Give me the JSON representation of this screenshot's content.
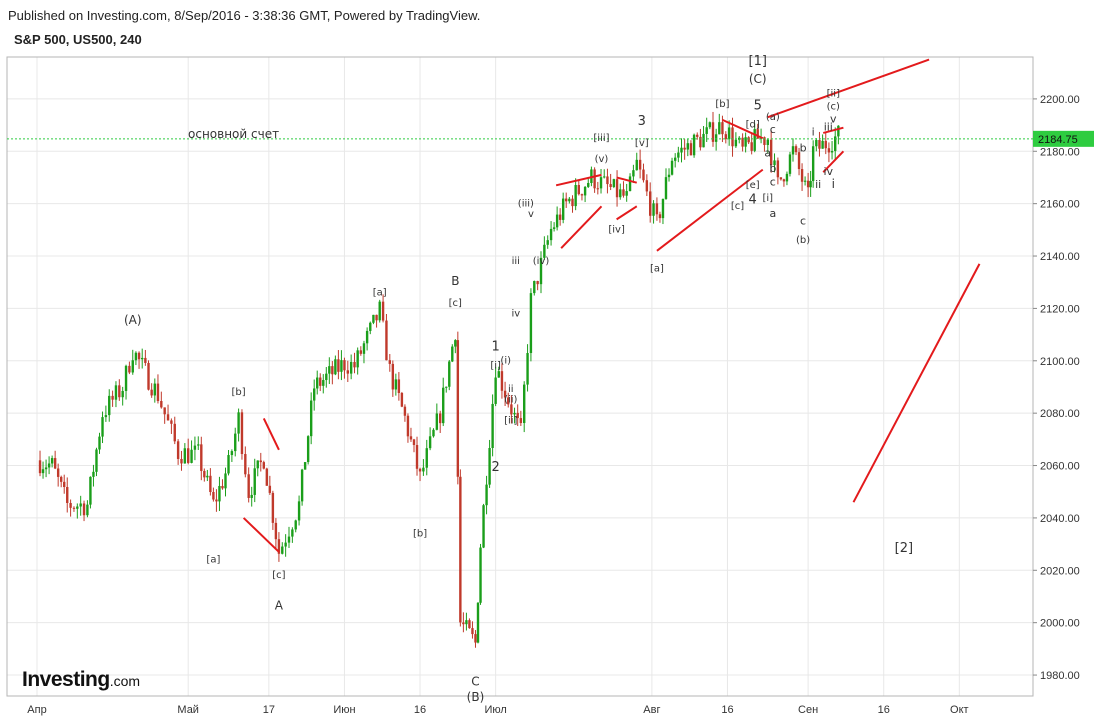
{
  "header": {
    "published": "Published on Investing.com, 8/Sep/2016 - 3:38:36 GMT, Powered by TradingView.",
    "symbol": "S&P 500, US500, 240"
  },
  "brand": {
    "name": "Investing",
    "suffix": ".com"
  },
  "colors": {
    "up": "#1a9e1a",
    "down": "#c0392b",
    "grid": "#e8e8e8",
    "annotation": "#e31a1c",
    "current": "#2ecc40",
    "wave_highlight": "#9b30d9"
  },
  "chart_data": {
    "type": "candlestick",
    "title": "S&P 500, US500, 240",
    "timeframe": "240",
    "x_labels": [
      "Апр",
      "Май",
      "17",
      "Июн",
      "16",
      "Июл",
      "Авг",
      "16",
      "Сен",
      "16",
      "Окт"
    ],
    "y_ticks": [
      1980,
      2000,
      2020,
      2040,
      2060,
      2080,
      2100,
      2120,
      2140,
      2160,
      2180,
      2200
    ],
    "ylim": [
      1972,
      2216
    ],
    "current_price": 2184.75,
    "current_price_label": "2184.75",
    "horizontal_line_label": "основной счет",
    "price_path": [
      {
        "d": "2016-04-01",
        "p": 2062
      },
      {
        "d": "2016-04-04",
        "p": 2060
      },
      {
        "d": "2016-04-07",
        "p": 2045
      },
      {
        "d": "2016-04-11",
        "p": 2045
      },
      {
        "d": "2016-04-14",
        "p": 2080
      },
      {
        "d": "2016-04-18",
        "p": 2090
      },
      {
        "d": "2016-04-20",
        "p": 2104
      },
      {
        "d": "2016-04-25",
        "p": 2087
      },
      {
        "d": "2016-04-29",
        "p": 2065
      },
      {
        "d": "2016-05-03",
        "p": 2064
      },
      {
        "d": "2016-05-06",
        "p": 2045
      },
      {
        "d": "2016-05-09",
        "p": 2060
      },
      {
        "d": "2016-05-11",
        "p": 2078
      },
      {
        "d": "2016-05-13",
        "p": 2050
      },
      {
        "d": "2016-05-16",
        "p": 2063
      },
      {
        "d": "2016-05-19",
        "p": 2027
      },
      {
        "d": "2016-05-23",
        "p": 2045
      },
      {
        "d": "2016-05-26",
        "p": 2090
      },
      {
        "d": "2016-06-01",
        "p": 2099
      },
      {
        "d": "2016-06-03",
        "p": 2098
      },
      {
        "d": "2016-06-08",
        "p": 2119
      },
      {
        "d": "2016-06-10",
        "p": 2096
      },
      {
        "d": "2016-06-13",
        "p": 2078
      },
      {
        "d": "2016-06-16",
        "p": 2055
      },
      {
        "d": "2016-06-20",
        "p": 2080
      },
      {
        "d": "2016-06-23",
        "p": 2112
      },
      {
        "d": "2016-06-24",
        "p": 2000
      },
      {
        "d": "2016-06-27",
        "p": 1992
      },
      {
        "d": "2016-06-28",
        "p": 2030
      },
      {
        "d": "2016-07-01",
        "p": 2098
      },
      {
        "d": "2016-07-06",
        "p": 2072
      },
      {
        "d": "2016-07-08",
        "p": 2123
      },
      {
        "d": "2016-07-12",
        "p": 2150
      },
      {
        "d": "2016-07-15",
        "p": 2160
      },
      {
        "d": "2016-07-20",
        "p": 2170
      },
      {
        "d": "2016-07-27",
        "p": 2162
      },
      {
        "d": "2016-07-29",
        "p": 2175
      },
      {
        "d": "2016-08-02",
        "p": 2152
      },
      {
        "d": "2016-08-05",
        "p": 2178
      },
      {
        "d": "2016-08-10",
        "p": 2184
      },
      {
        "d": "2016-08-15",
        "p": 2190
      },
      {
        "d": "2016-08-19",
        "p": 2180
      },
      {
        "d": "2016-08-22",
        "p": 2185
      },
      {
        "d": "2016-08-24",
        "p": 2185
      },
      {
        "d": "2016-08-26",
        "p": 2167
      },
      {
        "d": "2016-08-29",
        "p": 2180
      },
      {
        "d": "2016-09-01",
        "p": 2162
      },
      {
        "d": "2016-09-02",
        "p": 2180
      },
      {
        "d": "2016-09-07",
        "p": 2186
      }
    ],
    "trendlines": [
      {
        "from": [
          "2016-05-16",
          2078
        ],
        "to": [
          "2016-05-19",
          2066
        ]
      },
      {
        "from": [
          "2016-05-12",
          2040
        ],
        "to": [
          "2016-05-19",
          2027
        ]
      },
      {
        "from": [
          "2016-07-13",
          2167
        ],
        "to": [
          "2016-07-22",
          2171
        ]
      },
      {
        "from": [
          "2016-07-14",
          2143
        ],
        "to": [
          "2016-07-22",
          2159
        ]
      },
      {
        "from": [
          "2016-07-25",
          2170
        ],
        "to": [
          "2016-07-29",
          2168
        ]
      },
      {
        "from": [
          "2016-07-25",
          2154
        ],
        "to": [
          "2016-07-29",
          2159
        ]
      },
      {
        "from": [
          "2016-08-02",
          2142
        ],
        "to": [
          "2016-08-23",
          2173
        ]
      },
      {
        "from": [
          "2016-08-15",
          2192
        ],
        "to": [
          "2016-08-23",
          2185
        ]
      },
      {
        "from": [
          "2016-08-24",
          2193
        ],
        "to": [
          "2016-09-25",
          2215
        ]
      },
      {
        "from": [
          "2016-09-04",
          2187
        ],
        "to": [
          "2016-09-08",
          2189
        ]
      },
      {
        "from": [
          "2016-09-04",
          2172
        ],
        "to": [
          "2016-09-08",
          2180
        ]
      },
      {
        "from": [
          "2016-09-10",
          2046
        ],
        "to": [
          "2016-10-05",
          2137
        ]
      }
    ],
    "labels": [
      {
        "t": "(A)",
        "d": "2016-04-20",
        "p": 2114,
        "size": 12
      },
      {
        "t": "[b]",
        "d": "2016-05-11",
        "p": 2087,
        "size": 10
      },
      {
        "t": "[a]",
        "d": "2016-05-06",
        "p": 2023,
        "size": 10
      },
      {
        "t": "[c]",
        "d": "2016-05-19",
        "p": 2017,
        "size": 10
      },
      {
        "t": "A",
        "d": "2016-05-19",
        "p": 2005,
        "size": 12
      },
      {
        "t": "[a]",
        "d": "2016-06-08",
        "p": 2125,
        "size": 10
      },
      {
        "t": "[b]",
        "d": "2016-06-16",
        "p": 2033,
        "size": 10
      },
      {
        "t": "B",
        "d": "2016-06-23",
        "p": 2129,
        "size": 12
      },
      {
        "t": "[c]",
        "d": "2016-06-23",
        "p": 2121,
        "size": 10
      },
      {
        "t": "C",
        "d": "2016-06-27",
        "p": 1976,
        "size": 12
      },
      {
        "t": "(B)",
        "d": "2016-06-27",
        "p": 1970,
        "size": 12
      },
      {
        "t": "1",
        "d": "2016-07-01",
        "p": 2104,
        "size": 13
      },
      {
        "t": "[i]",
        "d": "2016-07-01",
        "p": 2097,
        "size": 10
      },
      {
        "t": "(i)",
        "d": "2016-07-03",
        "p": 2099,
        "size": 10
      },
      {
        "t": "ii",
        "d": "2016-07-04",
        "p": 2088,
        "size": 10
      },
      {
        "t": "(ii)",
        "d": "2016-07-04",
        "p": 2084,
        "size": 10
      },
      {
        "t": "[ii]",
        "d": "2016-07-04",
        "p": 2076,
        "size": 10
      },
      {
        "t": "2",
        "d": "2016-07-01",
        "p": 2058,
        "size": 13
      },
      {
        "t": "iii",
        "d": "2016-07-05",
        "p": 2137,
        "size": 10
      },
      {
        "t": "iv",
        "d": "2016-07-05",
        "p": 2117,
        "size": 10
      },
      {
        "t": "(iii)",
        "d": "2016-07-07",
        "p": 2159,
        "size": 10
      },
      {
        "t": "v",
        "d": "2016-07-08",
        "p": 2155,
        "size": 10
      },
      {
        "t": "(iv)",
        "d": "2016-07-10",
        "p": 2137,
        "size": 10
      },
      {
        "t": "[iii]",
        "d": "2016-07-22",
        "p": 2184,
        "size": 10
      },
      {
        "t": "(v)",
        "d": "2016-07-22",
        "p": 2176,
        "size": 10
      },
      {
        "t": "[iv]",
        "d": "2016-07-25",
        "p": 2149,
        "size": 10
      },
      {
        "t": "3",
        "d": "2016-07-30",
        "p": 2190,
        "size": 13
      },
      {
        "t": "[v]",
        "d": "2016-07-30",
        "p": 2182,
        "size": 10
      },
      {
        "t": "[a]",
        "d": "2016-08-02",
        "p": 2134,
        "size": 10
      },
      {
        "t": "[b]",
        "d": "2016-08-15",
        "p": 2197,
        "size": 10
      },
      {
        "t": "[c]",
        "d": "2016-08-18",
        "p": 2158,
        "size": 10
      },
      {
        "t": "[d]",
        "d": "2016-08-21",
        "p": 2189,
        "size": 10
      },
      {
        "t": "[e]",
        "d": "2016-08-21",
        "p": 2166,
        "size": 10
      },
      {
        "t": "4",
        "d": "2016-08-21",
        "p": 2160,
        "size": 13
      },
      {
        "t": "[1]",
        "d": "2016-08-22",
        "p": 2213,
        "size": 13
      },
      {
        "t": "(C)",
        "d": "2016-08-22",
        "p": 2206,
        "size": 12
      },
      {
        "t": "5",
        "d": "2016-08-22",
        "p": 2196,
        "size": 13
      },
      {
        "t": "(a)",
        "d": "2016-08-25",
        "p": 2192,
        "size": 10
      },
      {
        "t": "c",
        "d": "2016-08-25",
        "p": 2187,
        "size": 11
      },
      {
        "t": "a",
        "d": "2016-08-24",
        "p": 2178,
        "size": 11
      },
      {
        "t": "b",
        "d": "2016-08-25",
        "p": 2172,
        "size": 11
      },
      {
        "t": "c",
        "d": "2016-08-25",
        "p": 2167,
        "size": 11
      },
      {
        "t": "[i]",
        "d": "2016-08-24",
        "p": 2161,
        "size": 10
      },
      {
        "t": "a",
        "d": "2016-08-25",
        "p": 2155,
        "size": 11
      },
      {
        "t": "b",
        "d": "2016-08-31",
        "p": 2180,
        "size": 11
      },
      {
        "t": "c",
        "d": "2016-08-31",
        "p": 2152,
        "size": 11
      },
      {
        "t": "(b)",
        "d": "2016-08-31",
        "p": 2145,
        "size": 10
      },
      {
        "t": "i",
        "d": "2016-09-02",
        "p": 2186,
        "size": 11
      },
      {
        "t": "ii",
        "d": "2016-09-03",
        "p": 2166,
        "size": 11
      },
      {
        "t": "iii",
        "d": "2016-09-05",
        "p": 2188,
        "size": 11
      },
      {
        "t": "iv",
        "d": "2016-09-05",
        "p": 2171,
        "size": 11
      },
      {
        "t": "[ii]",
        "d": "2016-09-06",
        "p": 2201,
        "size": 10
      },
      {
        "t": "(c)",
        "d": "2016-09-06",
        "p": 2196,
        "size": 10
      },
      {
        "t": "v",
        "d": "2016-09-06",
        "p": 2191,
        "size": 11
      },
      {
        "t": "i",
        "d": "2016-09-06",
        "p": 2166,
        "size": 12,
        "color": "#9b30d9"
      },
      {
        "t": "[2]",
        "d": "2016-09-20",
        "p": 2027,
        "size": 13
      }
    ]
  }
}
